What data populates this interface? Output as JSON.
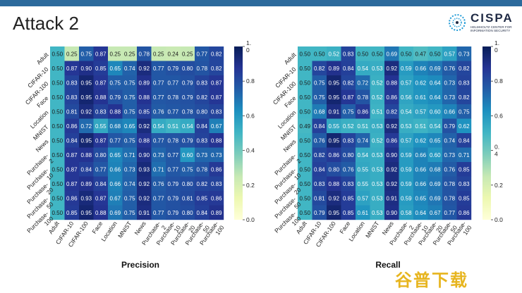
{
  "slide": {
    "title": "Attack 2",
    "brand": "CISPA",
    "brand_sub": "HELMHOLTZ CENTER FOR INFORMATION SECURITY"
  },
  "watermark": "谷普下载",
  "colors": {
    "header_bar": "#2c6a9c",
    "cmap": [
      "#ffffd9",
      "#edf8b1",
      "#c7e9b4",
      "#7fcdbb",
      "#41b6c4",
      "#1d91c0",
      "#225ea8",
      "#253494",
      "#081d58"
    ]
  },
  "chart_data": [
    {
      "type": "heatmap",
      "title": "Precision",
      "xlabel": "Precision",
      "x_categories": [
        "Adult",
        "CIFAR-10",
        "CIFAR-100",
        "Face",
        "Location",
        "MNIST",
        "News",
        "Purchase-2",
        "Purchase-10",
        "Purchase-20",
        "Purchase-50",
        "Purchase-100"
      ],
      "y_categories": [
        "Adult",
        "CIFAR-10",
        "CIFAR-100",
        "Face",
        "Location",
        "MNIST",
        "News",
        "Purchase-2",
        "Purchase-10",
        "Purchase-20",
        "Purchase-50",
        "Purchase-100"
      ],
      "x_tick_labels": [
        [
          "Adult"
        ],
        [
          "CIFAR-10"
        ],
        [
          "CIFAR-100"
        ],
        [
          "Face"
        ],
        [
          "Location"
        ],
        [
          "MNIST"
        ],
        [
          "News"
        ],
        [
          "Purchase-",
          "2"
        ],
        [
          "Purchase-",
          "10"
        ],
        [
          "Purchase-",
          "20"
        ],
        [
          "Purchase-",
          "50"
        ],
        [
          "Purchase-",
          "100"
        ]
      ],
      "y_tick_labels": [
        [
          "Adult"
        ],
        [
          "CIFAR-10"
        ],
        [
          "CIFAR-100"
        ],
        [
          "Face"
        ],
        [
          "Location"
        ],
        [
          "MNIST"
        ],
        [
          "News"
        ],
        [
          "Purchase-",
          "2"
        ],
        [
          "Purchase-",
          "10"
        ],
        [
          "Purchase-",
          "20"
        ],
        [
          "Purchase-",
          "50"
        ],
        [
          "Purchase-",
          "100"
        ]
      ],
      "values": [
        [
          0.5,
          0.25,
          0.75,
          0.87,
          0.25,
          0.25,
          0.78,
          0.25,
          0.24,
          0.25,
          0.77,
          0.82
        ],
        [
          0.5,
          0.87,
          0.9,
          0.85,
          0.65,
          0.74,
          0.92,
          0.77,
          0.79,
          0.8,
          0.78,
          0.82
        ],
        [
          0.5,
          0.83,
          0.95,
          0.87,
          0.75,
          0.75,
          0.89,
          0.77,
          0.77,
          0.79,
          0.83,
          0.87
        ],
        [
          0.5,
          0.83,
          0.95,
          0.88,
          0.79,
          0.75,
          0.88,
          0.77,
          0.78,
          0.79,
          0.82,
          0.87
        ],
        [
          0.5,
          0.81,
          0.92,
          0.83,
          0.88,
          0.75,
          0.85,
          0.76,
          0.77,
          0.78,
          0.8,
          0.83
        ],
        [
          0.5,
          0.86,
          0.72,
          0.55,
          0.68,
          0.65,
          0.92,
          0.54,
          0.51,
          0.54,
          0.84,
          0.67
        ],
        [
          0.5,
          0.84,
          0.95,
          0.87,
          0.77,
          0.75,
          0.88,
          0.77,
          0.78,
          0.79,
          0.83,
          0.88
        ],
        [
          0.5,
          0.87,
          0.88,
          0.8,
          0.65,
          0.71,
          0.9,
          0.73,
          0.77,
          0.6,
          0.73,
          0.73
        ],
        [
          0.5,
          0.87,
          0.84,
          0.77,
          0.66,
          0.73,
          0.93,
          0.71,
          0.77,
          0.75,
          0.78,
          0.86
        ],
        [
          0.5,
          0.87,
          0.89,
          0.84,
          0.66,
          0.74,
          0.92,
          0.76,
          0.79,
          0.8,
          0.82,
          0.83
        ],
        [
          0.5,
          0.86,
          0.93,
          0.87,
          0.67,
          0.75,
          0.92,
          0.77,
          0.79,
          0.81,
          0.85,
          0.86
        ],
        [
          0.5,
          0.85,
          0.95,
          0.88,
          0.69,
          0.75,
          0.91,
          0.77,
          0.79,
          0.8,
          0.84,
          0.89
        ]
      ],
      "value_labels": [
        [
          "0.50",
          "0.25",
          "0.75",
          "0.87",
          "0.25",
          "0.25",
          "0.78",
          "0.25",
          "0.24",
          "0.25",
          "0.77",
          "0.82"
        ],
        [
          "0.50",
          "0.87",
          "0.90",
          "0.85",
          "0.65",
          "0.74",
          "0.92",
          "0.77",
          "0.79",
          "0.80",
          "0.78",
          "0.82"
        ],
        [
          "0.50",
          "0.83",
          "0.95",
          "0.87",
          "0.75",
          "0.75",
          "0.89",
          "0.77",
          "0.77",
          "0.79",
          "0.83",
          "0.87"
        ],
        [
          "0.50",
          "0.83",
          "0.95",
          "0.88",
          "0.79",
          "0.75",
          "0.88",
          "0.77",
          "0.78",
          "0.79",
          "0.82",
          "0.87"
        ],
        [
          "0.50",
          "0.81",
          "0.92",
          "0.83",
          "0.88",
          "0.75",
          "0.85",
          "0.76",
          "0.77",
          "0.78",
          "0.80",
          "0.83"
        ],
        [
          "0.50",
          "0.86",
          "0.72",
          "0.55",
          "0.68",
          "0.65",
          "0.92",
          "0.54",
          "0.51",
          "0.54",
          "0.84",
          "0.67"
        ],
        [
          "0.50",
          "0.84",
          "0.95",
          "0.87",
          "0.77",
          "0.75",
          "0.88",
          "0.77",
          "0.78",
          "0.79",
          "0.83",
          "0.88"
        ],
        [
          "0.50",
          "0.87",
          "0.88",
          "0.80",
          "0.65",
          "0.71",
          "0.90",
          "0.73",
          "0.77",
          "0.60",
          "0.73",
          "0.73"
        ],
        [
          "0.50",
          "0.87",
          "0.84",
          "0.77",
          "0.66",
          "0.73",
          "0.93",
          "0.71",
          "0.77",
          "0.75",
          "0.78",
          "0.86"
        ],
        [
          "0.50",
          "0.87",
          "0.89",
          "0.84",
          "0.66",
          "0.74",
          "0.92",
          "0.76",
          "0.79",
          "0.80",
          "0.82",
          "0.83"
        ],
        [
          "0.50",
          "0.86",
          "0.93",
          "0.87",
          "0.67",
          "0.75",
          "0.92",
          "0.77",
          "0.79",
          "0.81",
          "0.85",
          "0.86"
        ],
        [
          "0.50",
          "0.85",
          "0.95",
          "0.88",
          "0.69",
          "0.75",
          "0.91",
          "0.77",
          "0.79",
          "0.80",
          "0.84",
          "0.89"
        ]
      ],
      "colorbar": {
        "range": [
          0,
          1.0
        ],
        "ticks": [
          0,
          0.2,
          0.4,
          0.6,
          0.8,
          1.0
        ],
        "tick_labels": [
          [
            "0.0"
          ],
          [
            "0.2"
          ],
          [
            "0.4"
          ],
          [
            "0.6"
          ],
          [
            "0.8"
          ],
          [
            "1.",
            "0"
          ]
        ]
      }
    },
    {
      "type": "heatmap",
      "title": "Recall",
      "xlabel": "Recall",
      "x_categories": [
        "Adult",
        "CIFAR-10",
        "CIFAR-100",
        "Face",
        "Location",
        "MNIST",
        "News",
        "Purchase-2",
        "Purchase-10",
        "Purchase-20",
        "Purchase-50",
        "Purchase-100"
      ],
      "y_categories": [
        "Adult",
        "CIFAR-10",
        "CIFAR-100",
        "Face",
        "Location",
        "MNIST",
        "News",
        "Purchase-2",
        "Purchase-10",
        "Purchase-20",
        "Purchase-50",
        "Purchase-100"
      ],
      "x_tick_labels": [
        [
          "Adult"
        ],
        [
          "CIFAR-10"
        ],
        [
          "CIFAR-100"
        ],
        [
          "Face"
        ],
        [
          "Location"
        ],
        [
          "MNIST"
        ],
        [
          "News"
        ],
        [
          "Purchase-",
          "2"
        ],
        [
          "Purchase-",
          "10"
        ],
        [
          "Purchase-",
          "20"
        ],
        [
          "Purchase-",
          "50"
        ],
        [
          "Purchase-",
          "100"
        ]
      ],
      "y_tick_labels": [
        [
          "Adult"
        ],
        [
          "CIFAR-10"
        ],
        [
          "CIFAR-100"
        ],
        [
          "Face"
        ],
        [
          "Location"
        ],
        [
          "MNIST"
        ],
        [
          "News"
        ],
        [
          "Purchase-",
          "2"
        ],
        [
          "Purchase-",
          "10"
        ],
        [
          "Purchase-",
          "20"
        ],
        [
          "Purchase-",
          "50"
        ],
        [
          "Purchase-",
          "100"
        ]
      ],
      "values": [
        [
          0.5,
          0.5,
          0.52,
          0.83,
          0.5,
          0.5,
          0.69,
          0.5,
          0.47,
          0.5,
          0.57,
          0.73
        ],
        [
          0.5,
          0.82,
          0.89,
          0.84,
          0.54,
          0.53,
          0.92,
          0.59,
          0.66,
          0.69,
          0.76,
          0.82
        ],
        [
          0.5,
          0.75,
          0.95,
          0.82,
          0.72,
          0.52,
          0.88,
          0.57,
          0.62,
          0.64,
          0.73,
          0.83
        ],
        [
          0.5,
          0.75,
          0.95,
          0.87,
          0.78,
          0.52,
          0.86,
          0.56,
          0.61,
          0.64,
          0.73,
          0.82
        ],
        [
          0.5,
          0.68,
          0.91,
          0.75,
          0.86,
          0.51,
          0.82,
          0.54,
          0.57,
          0.6,
          0.66,
          0.75
        ],
        [
          0.49,
          0.84,
          0.55,
          0.52,
          0.51,
          0.53,
          0.92,
          0.53,
          0.51,
          0.54,
          0.79,
          0.62
        ],
        [
          0.5,
          0.76,
          0.95,
          0.83,
          0.74,
          0.52,
          0.86,
          0.57,
          0.62,
          0.65,
          0.74,
          0.84
        ],
        [
          0.5,
          0.82,
          0.86,
          0.8,
          0.54,
          0.53,
          0.9,
          0.59,
          0.66,
          0.6,
          0.73,
          0.71
        ],
        [
          0.5,
          0.84,
          0.8,
          0.76,
          0.55,
          0.53,
          0.92,
          0.59,
          0.66,
          0.68,
          0.76,
          0.85
        ],
        [
          0.5,
          0.83,
          0.88,
          0.83,
          0.55,
          0.53,
          0.92,
          0.59,
          0.66,
          0.69,
          0.78,
          0.83
        ],
        [
          0.5,
          0.81,
          0.92,
          0.85,
          0.57,
          0.53,
          0.91,
          0.59,
          0.65,
          0.69,
          0.78,
          0.85
        ],
        [
          0.5,
          0.79,
          0.95,
          0.85,
          0.61,
          0.53,
          0.9,
          0.58,
          0.64,
          0.67,
          0.77,
          0.86
        ]
      ],
      "value_labels": [
        [
          "0.50",
          "0.50",
          "0.52",
          "0.83",
          "0.50",
          "0.50",
          "0.69",
          "0.50",
          "0.47",
          "0.50",
          "0.57",
          "0.73"
        ],
        [
          "0.50",
          "0.82",
          "0.89",
          "0.84",
          "0.54",
          "0.53",
          "0.92",
          "0.59",
          "0.66",
          "0.69",
          "0.76",
          "0.82"
        ],
        [
          "0.50",
          "0.75",
          "0.95",
          "0.82",
          "0.72",
          "0.52",
          "0.88",
          "0.57",
          "0.62",
          "0.64",
          "0.73",
          "0.83"
        ],
        [
          "0.50",
          "0.75",
          "0.95",
          "0.87",
          "0.78",
          "0.52",
          "0.86",
          "0.56",
          "0.61",
          "0.64",
          "0.73",
          "0.82"
        ],
        [
          "0.50",
          "0.68",
          "0.91",
          "0.75",
          "0.86",
          "0.51",
          "0.82",
          "0.54",
          "0.57",
          "0.60",
          "0.66",
          "0.75"
        ],
        [
          "0.49",
          "0.84",
          "0.55",
          "0.52",
          "0.51",
          "0.53",
          "0.92",
          "0.53",
          "0.51",
          "0.54",
          "0.79",
          "0.62"
        ],
        [
          "0.50",
          "0.76",
          "0.95",
          "0.83",
          "0.74",
          "0.52",
          "0.86",
          "0.57",
          "0.62",
          "0.65",
          "0.74",
          "0.84"
        ],
        [
          "0.50",
          "0.82",
          "0.86",
          "0.80",
          "0.54",
          "0.53",
          "0.90",
          "0.59",
          "0.66",
          "0.60",
          "0.73",
          "0.71"
        ],
        [
          "0.50",
          "0.84",
          "0.80",
          "0.76",
          "0.55",
          "0.53",
          "0.92",
          "0.59",
          "0.66",
          "0.68",
          "0.76",
          "0.85"
        ],
        [
          "0.50",
          "0.83",
          "0.88",
          "0.83",
          "0.55",
          "0.53",
          "0.92",
          "0.59",
          "0.66",
          "0.69",
          "0.78",
          "0.83"
        ],
        [
          "0.50",
          "0.81",
          "0.92",
          "0.85",
          "0.57",
          "0.53",
          "0.91",
          "0.59",
          "0.65",
          "0.69",
          "0.78",
          "0.85"
        ],
        [
          "0.50",
          "0.79",
          "0.95",
          "0.85",
          "0.61",
          "0.53",
          "0.90",
          "0.58",
          "0.64",
          "0.67",
          "0.77",
          "0.86"
        ]
      ],
      "colorbar": {
        "range": [
          0,
          1.0
        ],
        "ticks": [
          0,
          0.2,
          0.4,
          0.6,
          0.8,
          1.0
        ],
        "tick_labels": [
          [
            "0.0"
          ],
          [
            "0.2"
          ],
          [
            "0.",
            "4"
          ],
          [
            "0.6"
          ],
          [
            "0.8"
          ],
          [
            "1.",
            "0"
          ]
        ]
      }
    }
  ]
}
